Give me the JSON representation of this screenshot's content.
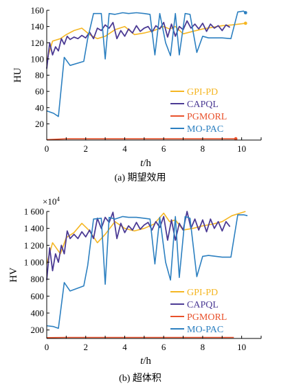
{
  "chart_data": [
    {
      "type": "line",
      "caption": "(a) 期望效用",
      "ylabel": "HU",
      "xlabel_italic": "t",
      "xlabel_rest": "/h",
      "xlim": [
        0,
        11
      ],
      "ylim": [
        0,
        160
      ],
      "xticks": [
        0,
        2,
        4,
        6,
        8,
        10
      ],
      "xtick_labels": [
        "0",
        "2",
        "4",
        "6",
        "8",
        "10"
      ],
      "yticks": [
        20,
        40,
        60,
        80,
        100,
        120,
        140,
        160
      ],
      "ytick_labels": [
        "20",
        "40",
        "60",
        "80",
        "100",
        "120",
        "140",
        "160"
      ],
      "minor_xticks": [
        1,
        3,
        5,
        7,
        9,
        11
      ],
      "legend_position": "right",
      "series": [
        {
          "name": "GPI-PD",
          "color": "#f5b622",
          "width": 1.6,
          "end_marker": true,
          "x": [
            0,
            0.3,
            0.7,
            1.0,
            1.4,
            1.8,
            2.2,
            2.6,
            3.0,
            3.5,
            4.0,
            4.5,
            5.0,
            5.5,
            6.0,
            6.3,
            6.6,
            7.0,
            7.5,
            8.0,
            8.5,
            9.0,
            9.5,
            10.2
          ],
          "y": [
            98,
            122,
            125,
            130,
            135,
            138,
            130,
            125,
            128,
            136,
            140,
            130,
            132,
            135,
            140,
            137,
            140,
            131,
            134,
            137,
            139,
            141,
            142,
            144
          ]
        },
        {
          "name": "CAPQL",
          "color": "#4b3a94",
          "width": 1.8,
          "end_marker": false,
          "x": [
            0,
            0.15,
            0.3,
            0.45,
            0.6,
            0.75,
            0.9,
            1.05,
            1.2,
            1.4,
            1.6,
            1.8,
            2.0,
            2.2,
            2.4,
            2.6,
            2.8,
            3.0,
            3.2,
            3.4,
            3.6,
            3.8,
            4.0,
            4.2,
            4.4,
            4.6,
            4.8,
            5.0,
            5.2,
            5.4,
            5.6,
            5.8,
            6.0,
            6.2,
            6.4,
            6.6,
            6.8,
            7.0,
            7.2,
            7.4,
            7.6,
            7.8,
            8.0,
            8.2,
            8.4,
            8.6,
            8.8,
            9.0,
            9.2,
            9.4
          ],
          "y": [
            88,
            120,
            105,
            115,
            110,
            125,
            118,
            128,
            124,
            127,
            125,
            129,
            126,
            133,
            125,
            138,
            135,
            142,
            138,
            145,
            125,
            135,
            128,
            137,
            132,
            141,
            134,
            138,
            140,
            133,
            141,
            137,
            145,
            127,
            143,
            128,
            140,
            136,
            147,
            138,
            143,
            137,
            144,
            134,
            143,
            138,
            141,
            135,
            142,
            139
          ]
        },
        {
          "name": "PGMORL",
          "color": "#e8502a",
          "width": 1.6,
          "end_marker": true,
          "x": [
            0,
            1,
            2,
            3,
            4,
            5,
            6,
            7,
            8,
            9,
            9.7
          ],
          "y": [
            0.5,
            1.5,
            1.5,
            1.5,
            1.5,
            1.5,
            1.5,
            1.5,
            1.5,
            1.5,
            1.5
          ]
        },
        {
          "name": "MO-PAC",
          "color": "#2b7fc0",
          "width": 1.6,
          "end_marker": true,
          "x": [
            0,
            0.35,
            0.6,
            0.9,
            1.2,
            1.9,
            2.1,
            2.4,
            2.8,
            3.0,
            3.2,
            3.5,
            3.9,
            4.2,
            4.6,
            5.0,
            5.3,
            5.55,
            5.8,
            6.1,
            6.35,
            6.6,
            6.8,
            7.1,
            7.35,
            7.7,
            8.0,
            8.3,
            9.0,
            9.45,
            9.8,
            10.1,
            10.2
          ],
          "y": [
            36,
            33,
            29,
            102,
            92,
            97,
            125,
            156,
            156,
            100,
            156,
            155,
            157,
            156,
            157,
            156,
            155,
            105,
            156,
            120,
            104,
            156,
            105,
            156,
            155,
            108,
            128,
            126,
            126,
            125,
            158,
            159,
            157
          ]
        }
      ]
    },
    {
      "type": "line",
      "caption": "(b) 超体积",
      "ylabel": "HV",
      "xlabel_italic": "t",
      "xlabel_rest": "/h",
      "multiplier_base": "×10",
      "multiplier_exp": "4",
      "xlim": [
        0,
        11
      ],
      "ylim": [
        100,
        1600
      ],
      "xticks": [
        0,
        2,
        4,
        6,
        8,
        10
      ],
      "xtick_labels": [
        "0",
        "2",
        "4",
        "6",
        "8",
        "10"
      ],
      "yticks": [
        200,
        400,
        600,
        800,
        1000,
        1200,
        1400,
        1600
      ],
      "ytick_labels": [
        "200",
        "400",
        "600",
        "800",
        "1 000",
        "1 200",
        "1 400",
        "1 600"
      ],
      "minor_xticks": [
        1,
        3,
        5,
        7,
        9,
        11
      ],
      "legend_position": "right",
      "series": [
        {
          "name": "GPI-PD",
          "color": "#f5b622",
          "width": 1.6,
          "end_marker": false,
          "x": [
            0,
            0.3,
            0.7,
            1.0,
            1.4,
            1.8,
            2.2,
            2.6,
            3.0,
            3.5,
            4.0,
            4.5,
            5.0,
            5.5,
            6.0,
            6.3,
            6.6,
            7.0,
            7.5,
            8.0,
            8.5,
            9.0,
            9.5,
            10.2
          ],
          "y": [
            980,
            1230,
            1100,
            1290,
            1350,
            1460,
            1370,
            1230,
            1330,
            1480,
            1400,
            1370,
            1400,
            1450,
            1580,
            1480,
            1500,
            1380,
            1400,
            1430,
            1450,
            1480,
            1550,
            1600
          ]
        },
        {
          "name": "CAPQL",
          "color": "#4b3a94",
          "width": 1.8,
          "end_marker": false,
          "x": [
            0,
            0.15,
            0.3,
            0.45,
            0.6,
            0.75,
            0.9,
            1.05,
            1.2,
            1.4,
            1.6,
            1.8,
            2.0,
            2.2,
            2.4,
            2.6,
            2.8,
            3.0,
            3.2,
            3.4,
            3.6,
            3.8,
            4.0,
            4.2,
            4.4,
            4.6,
            4.8,
            5.0,
            5.2,
            5.4,
            5.6,
            5.8,
            6.0,
            6.2,
            6.4,
            6.6,
            6.8,
            7.0,
            7.2,
            7.4,
            7.6,
            7.8,
            8.0,
            8.2,
            8.4,
            8.6,
            8.8,
            9.0,
            9.2,
            9.4
          ],
          "y": [
            790,
            1170,
            900,
            1100,
            1000,
            1200,
            1100,
            1370,
            1280,
            1330,
            1280,
            1360,
            1300,
            1380,
            1280,
            1520,
            1400,
            1530,
            1470,
            1590,
            1280,
            1460,
            1350,
            1430,
            1380,
            1470,
            1390,
            1440,
            1470,
            1380,
            1480,
            1410,
            1540,
            1260,
            1500,
            1260,
            1460,
            1380,
            1600,
            1400,
            1510,
            1380,
            1500,
            1360,
            1510,
            1400,
            1480,
            1370,
            1480,
            1420
          ]
        },
        {
          "name": "PGMORL",
          "color": "#e8502a",
          "width": 1.6,
          "end_marker": false,
          "x": [
            0,
            1,
            2,
            3,
            4,
            5,
            6,
            7,
            8,
            9,
            9.6
          ],
          "y": [
            110,
            112,
            112,
            112,
            112,
            112,
            112,
            112,
            112,
            112,
            112
          ]
        },
        {
          "name": "MO-PAC",
          "color": "#2b7fc0",
          "width": 1.6,
          "end_marker": false,
          "x": [
            0,
            0.35,
            0.6,
            0.9,
            1.2,
            1.9,
            2.1,
            2.4,
            2.8,
            3.0,
            3.2,
            3.5,
            3.9,
            4.2,
            4.6,
            5.0,
            5.3,
            5.55,
            5.8,
            6.1,
            6.35,
            6.6,
            6.8,
            7.1,
            7.35,
            7.7,
            8.0,
            8.3,
            9.0,
            9.45,
            9.8,
            10.1,
            10.3
          ],
          "y": [
            250,
            240,
            220,
            760,
            660,
            720,
            960,
            1510,
            1520,
            740,
            1530,
            1510,
            1540,
            1530,
            1530,
            1520,
            1510,
            980,
            1530,
            1000,
            790,
            1540,
            820,
            1540,
            1520,
            830,
            1070,
            1080,
            1060,
            1060,
            1560,
            1560,
            1550
          ]
        }
      ]
    }
  ]
}
